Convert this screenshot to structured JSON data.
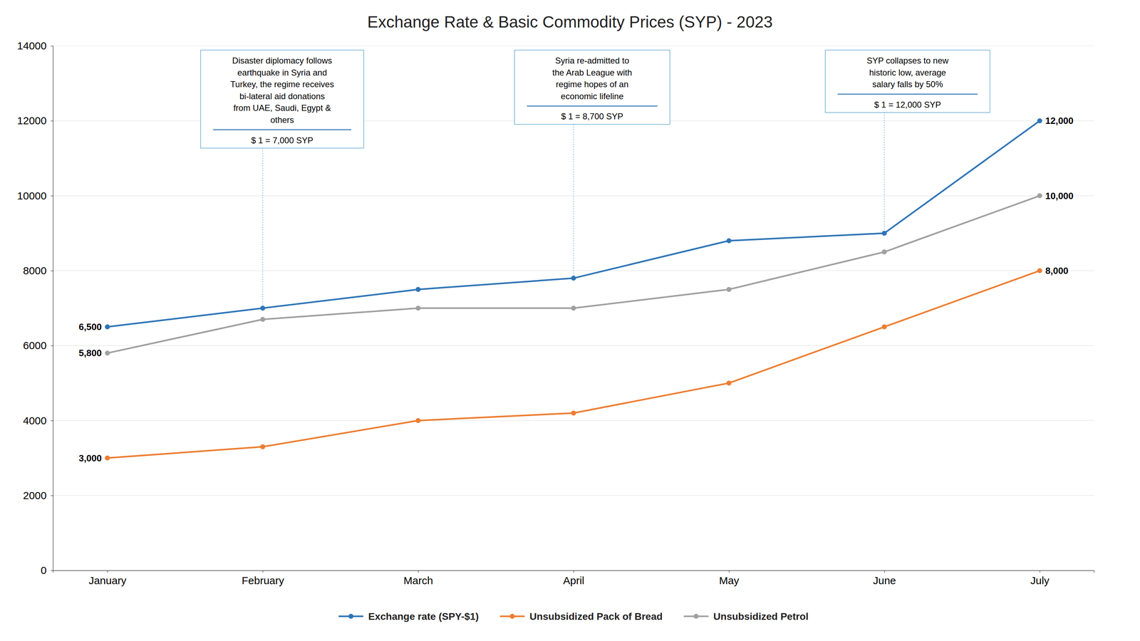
{
  "chart_data": {
    "type": "line",
    "title": "Exchange Rate & Basic Commodity Prices (SYP) - 2023",
    "categories": [
      "January",
      "February",
      "March",
      "April",
      "May",
      "June",
      "July"
    ],
    "series": [
      {
        "name": "Exchange rate (SPY-$1)",
        "color": "#2E75B6",
        "marker": "circle",
        "values": [
          6500,
          7000,
          7500,
          7800,
          8800,
          9000,
          12000
        ],
        "value_labels": [
          "6,500",
          null,
          null,
          null,
          null,
          null,
          "12,000"
        ]
      },
      {
        "name": "Unsubsidized Pack of Bread",
        "color": "#ED7D31",
        "marker": "circle",
        "values": [
          3000,
          3300,
          4000,
          4200,
          5000,
          6500,
          8000
        ],
        "value_labels": [
          "3,000",
          null,
          null,
          null,
          null,
          null,
          "8,000"
        ]
      },
      {
        "name": "Unsubsidized Petrol",
        "color": "#A0A0A0",
        "marker": "circle",
        "values": [
          5800,
          6700,
          7000,
          7000,
          7500,
          8500,
          10000
        ],
        "value_labels": [
          "5,800",
          null,
          null,
          null,
          null,
          null,
          "10,000"
        ]
      }
    ],
    "ylim": [
      0,
      14000
    ],
    "yticks": [
      0,
      2000,
      4000,
      6000,
      8000,
      10000,
      12000,
      14000
    ],
    "grid": true,
    "legend": "bottom",
    "data_labels": true,
    "annotations": [
      {
        "text": "Disaster diplomacy follows\nearthquake in Syria and\nTurkey, the regime receives\nbi-lateral aid donations\nfrom UAE, Saudi, Egypt &\nothers",
        "sub_text": "$ 1 = 7,000 SYP"
      },
      {
        "text": "Syria re-admitted to\nthe Arab League with\nregime hopes of an\neconomic lifeline",
        "sub_text": "$ 1 = 8,700 SYP"
      },
      {
        "text": "SYP collapses to new\nhistoric low, average\nsalary falls by 50%",
        "sub_text": "$ 1 = 12,000 SYP"
      }
    ]
  }
}
